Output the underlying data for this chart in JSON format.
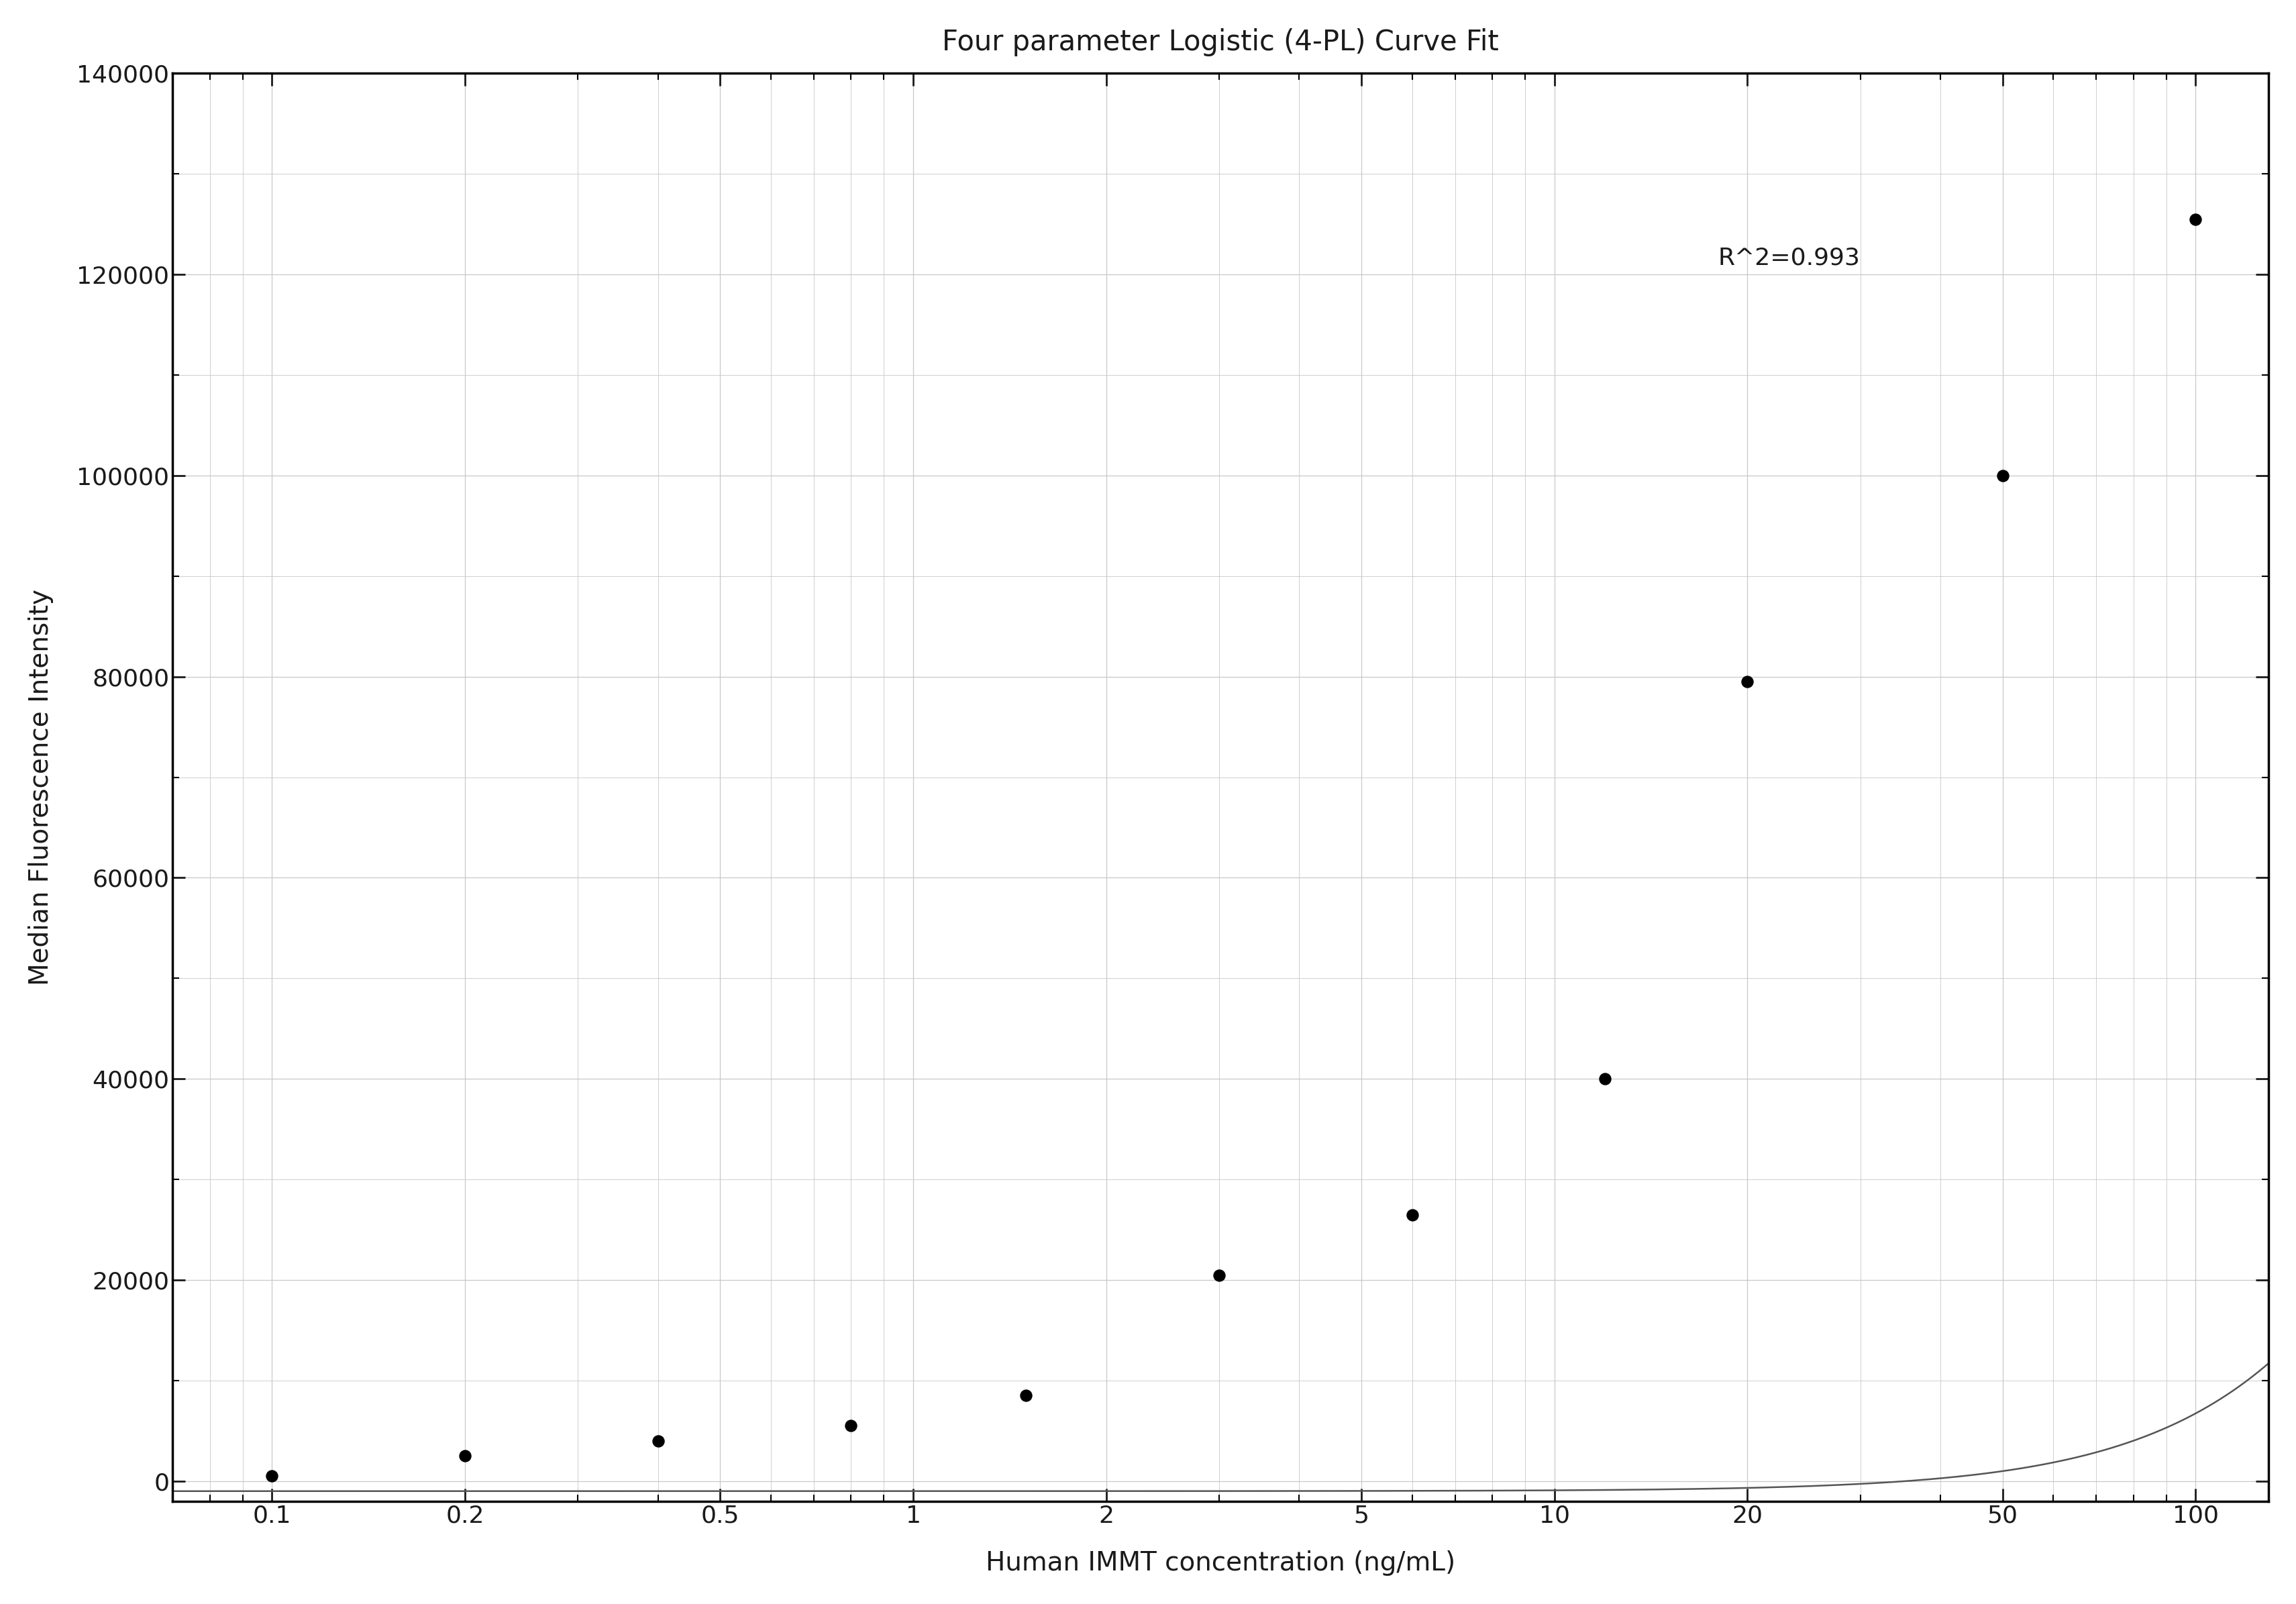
{
  "title": "Four parameter Logistic (4-PL) Curve Fit",
  "xlabel": "Human IMMT concentration (ng/mL)",
  "ylabel": "Median Fluorescence Intensity",
  "r_squared": "R^2=0.993",
  "x_data": [
    0.1,
    0.2,
    0.4,
    0.8,
    1.5,
    3.0,
    6.0,
    12.0,
    20.0,
    50.0,
    100.0
  ],
  "y_data": [
    500,
    2500,
    4000,
    5500,
    8500,
    20500,
    26500,
    40000,
    79500,
    100000,
    125500
  ],
  "xlim_left": 0.07,
  "xlim_right": 130,
  "ylim": [
    -2000,
    140000
  ],
  "yticks": [
    0,
    20000,
    40000,
    60000,
    80000,
    100000,
    120000,
    140000
  ],
  "ytick_labels": [
    "0",
    "20000",
    "40000",
    "60000",
    "80000",
    "100000",
    "120000",
    "140000"
  ],
  "xticks": [
    0.1,
    0.2,
    0.5,
    1,
    2,
    5,
    10,
    20,
    50,
    100
  ],
  "xtick_labels": [
    "0.1",
    "0.2",
    "0.5",
    "1",
    "2",
    "5",
    "10",
    "20",
    "50",
    "100"
  ],
  "background_color": "#ffffff",
  "grid_color": "#c8c8c8",
  "line_color": "#555555",
  "dot_color": "#000000",
  "text_color": "#1a1a1a",
  "title_fontsize": 30,
  "label_fontsize": 28,
  "tick_fontsize": 26,
  "annotation_fontsize": 26,
  "r2_x": 18,
  "r2_y": 121000,
  "dot_size": 150,
  "line_width": 1.8,
  "spine_linewidth": 2.5
}
